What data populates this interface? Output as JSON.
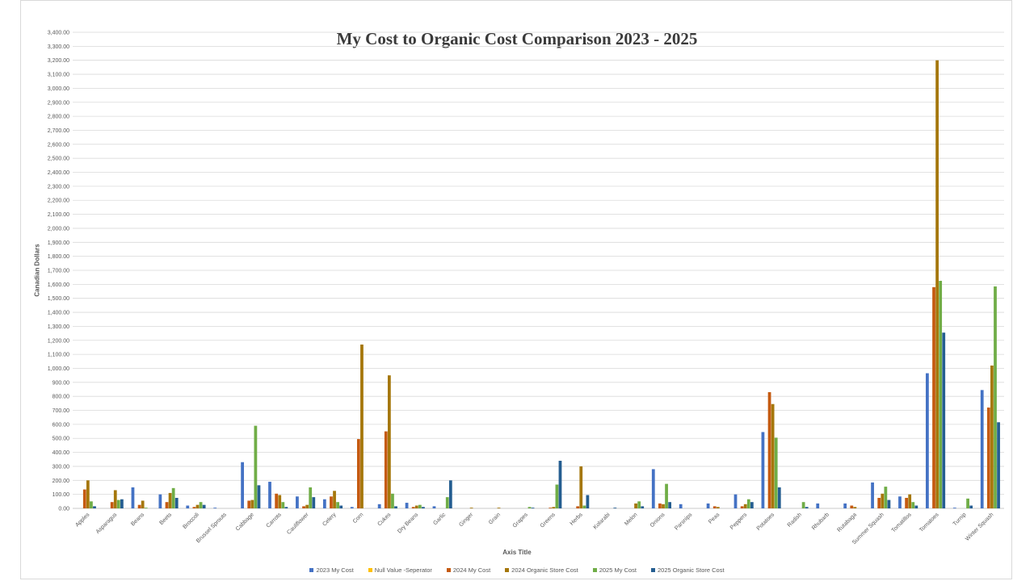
{
  "chart_data": {
    "type": "bar",
    "title": "My Cost to Organic Cost Comparison 2023 - 2025",
    "xlabel": "Axis Title",
    "ylabel": "Canadian Dollars",
    "ylim": [
      0,
      3400
    ],
    "ytick_step": 100,
    "grid": true,
    "legend_position": "bottom",
    "categories": [
      "Apples",
      "Asparagus",
      "Beans",
      "Beets",
      "Broccoli",
      "Brussel Sprouts",
      "Cabbage",
      "Carrots",
      "Cauliflower",
      "Celery",
      "Corn",
      "Cukes",
      "Dry Beans",
      "Garlic",
      "Ginger",
      "Grain",
      "Grapes",
      "Greens",
      "Herbs",
      "Kolarabi",
      "Melon",
      "Onions",
      "Parsnips",
      "Peas",
      "Peppers",
      "Potatoes",
      "Radish",
      "Rhubarb",
      "Rutabaga",
      "Summer Squash",
      "Tomatillos",
      "Tomatoes",
      "Turnip",
      "Winter Squash"
    ],
    "series": [
      {
        "name": "2023 My Cost",
        "color": "#4472c4",
        "values": [
          0,
          0,
          150,
          100,
          20,
          5,
          330,
          190,
          85,
          65,
          10,
          30,
          40,
          15,
          0,
          0,
          0,
          0,
          0,
          0,
          0,
          280,
          30,
          35,
          100,
          545,
          0,
          35,
          35,
          185,
          85,
          965,
          5,
          845
        ]
      },
      {
        "name": "Null Value -Seperator",
        "color": "#ffc000",
        "values": [
          0,
          0,
          0,
          0,
          0,
          0,
          0,
          0,
          0,
          0,
          0,
          0,
          0,
          0,
          0,
          0,
          0,
          0,
          0,
          0,
          0,
          0,
          0,
          0,
          0,
          0,
          0,
          0,
          0,
          0,
          0,
          0,
          0,
          0
        ]
      },
      {
        "name": "2024 My Cost",
        "color": "#c55a11",
        "values": [
          135,
          45,
          25,
          45,
          10,
          0,
          55,
          105,
          15,
          85,
          495,
          550,
          10,
          0,
          0,
          0,
          0,
          5,
          15,
          0,
          0,
          35,
          0,
          15,
          15,
          830,
          0,
          0,
          20,
          75,
          75,
          1580,
          0,
          720
        ]
      },
      {
        "name": "2024 Organic Store Cost",
        "color": "#a5770b",
        "values": [
          200,
          130,
          55,
          110,
          25,
          0,
          60,
          95,
          25,
          125,
          1170,
          950,
          20,
          0,
          5,
          5,
          0,
          10,
          300,
          0,
          35,
          30,
          0,
          10,
          30,
          745,
          0,
          0,
          10,
          105,
          100,
          3200,
          0,
          1020
        ]
      },
      {
        "name": "2025 My Cost",
        "color": "#70ad47",
        "values": [
          50,
          60,
          5,
          145,
          45,
          0,
          590,
          45,
          150,
          45,
          0,
          105,
          25,
          80,
          0,
          0,
          10,
          170,
          20,
          0,
          50,
          175,
          0,
          0,
          65,
          505,
          45,
          0,
          0,
          155,
          45,
          1625,
          70,
          1585
        ]
      },
      {
        "name": "2025 Organic Store Cost",
        "color": "#255e91",
        "values": [
          15,
          65,
          0,
          75,
          25,
          0,
          165,
          10,
          80,
          20,
          0,
          15,
          10,
          200,
          0,
          0,
          5,
          340,
          95,
          5,
          15,
          45,
          0,
          0,
          45,
          150,
          10,
          0,
          0,
          60,
          20,
          1255,
          20,
          615
        ]
      }
    ]
  }
}
